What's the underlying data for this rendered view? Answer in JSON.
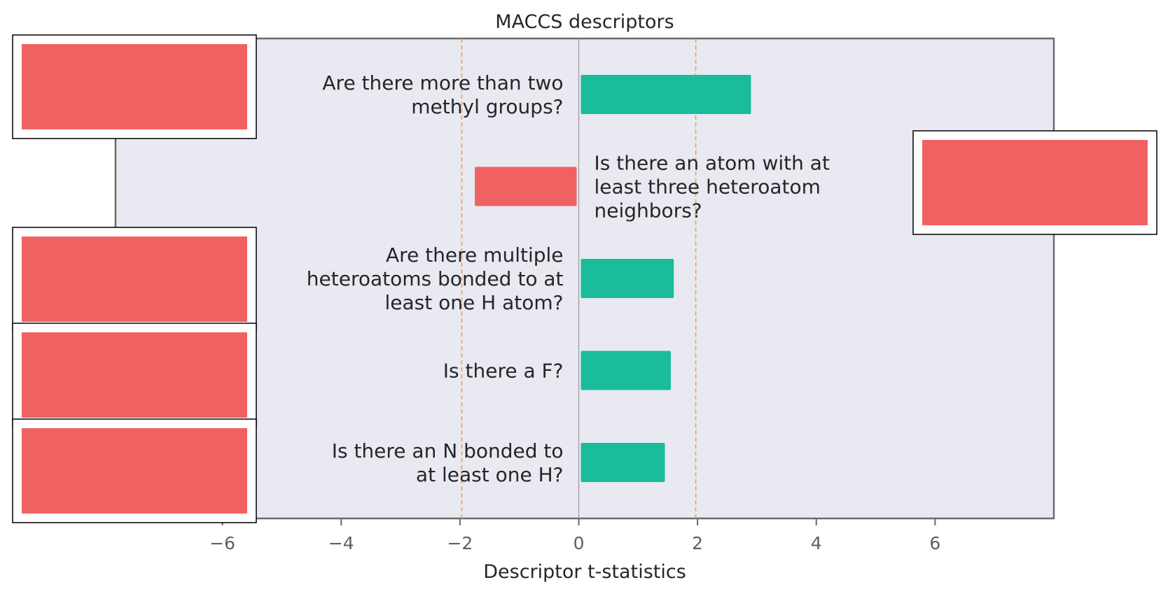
{
  "chart_data": {
    "type": "bar",
    "orientation": "horizontal",
    "title": "MACCS descriptors",
    "xlabel": "Descriptor t-statistics",
    "ylabel": "",
    "xlim": [
      -7.8,
      8.0
    ],
    "xticks": [
      -6,
      -4,
      -2,
      0,
      2,
      4,
      6
    ],
    "xtick_labels": [
      "−6",
      "−4",
      "−2",
      "0",
      "2",
      "4",
      "6"
    ],
    "significance_lines": [
      -1.97,
      1.97
    ],
    "categories": [
      "Are there more than two methyl groups?",
      "Is there an atom with at least three heteroatom neighbors?",
      "Are there multiple heteroatoms bonded to at least one H atom?",
      "Is there a F?",
      "Is there an N bonded to at least one H?"
    ],
    "label_lines": [
      [
        "Are there more than two",
        "methyl groups?"
      ],
      [
        "Is there an atom with at",
        "least three heteroatom",
        "neighbors?"
      ],
      [
        "Are there multiple",
        "heteroatoms bonded to at",
        "least one H atom?"
      ],
      [
        "Is there a F?"
      ],
      [
        "Is there an N bonded to",
        "at least one H?"
      ]
    ],
    "values": [
      2.9,
      -1.75,
      1.6,
      1.55,
      1.45
    ],
    "grid": false,
    "colors": {
      "positive": "#1abc9c",
      "negative": "#f06262",
      "plot_background": "#e8e9f1",
      "frame": "#6b6b6b",
      "zero_line": "#9a9a9a",
      "significance_line": "#f0a040",
      "inset_fill": "#f06262"
    }
  }
}
